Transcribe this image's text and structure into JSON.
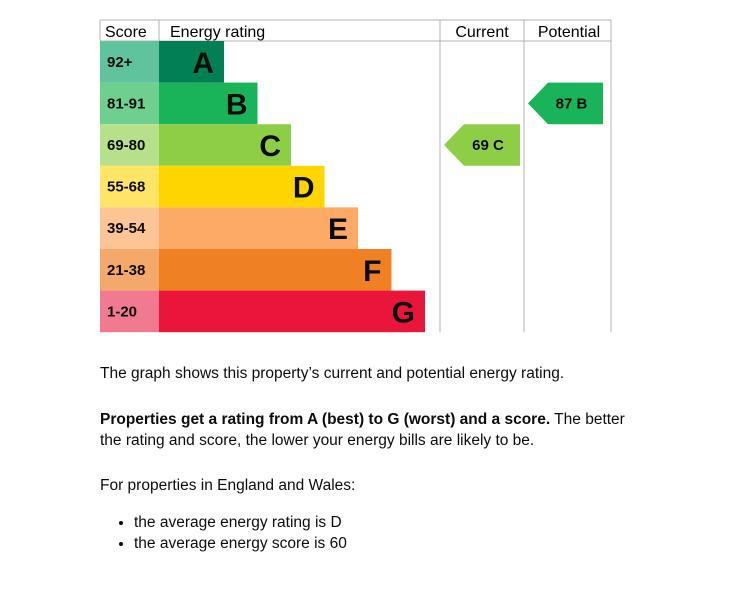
{
  "chart_data": {
    "type": "bar",
    "headers": {
      "score": "Score",
      "rating": "Energy rating",
      "current": "Current",
      "potential": "Potential"
    },
    "bands": [
      {
        "score": "92+",
        "letter": "A",
        "color": "#008054",
        "score_color": "#5fc49d"
      },
      {
        "score": "81-91",
        "letter": "B",
        "color": "#19b459",
        "score_color": "#6fcf8f"
      },
      {
        "score": "69-80",
        "letter": "C",
        "color": "#8dce46",
        "score_color": "#b7e08a"
      },
      {
        "score": "55-68",
        "letter": "D",
        "color": "#ffd500",
        "score_color": "#ffe566"
      },
      {
        "score": "39-54",
        "letter": "E",
        "color": "#fcaa65",
        "score_color": "#fdc595"
      },
      {
        "score": "21-38",
        "letter": "F",
        "color": "#ef8023",
        "score_color": "#f4a869"
      },
      {
        "score": "1-20",
        "letter": "G",
        "color": "#e9153b",
        "score_color": "#f17a90"
      }
    ],
    "current": {
      "value": 69,
      "letter": "C",
      "label": "69 C",
      "color": "#8dce46"
    },
    "potential": {
      "value": 87,
      "letter": "B",
      "label": "87 B",
      "color": "#19b459"
    }
  },
  "text": {
    "p1": "The graph shows this property’s current and potential energy rating.",
    "p2_bold": "Properties get a rating from A (best) to G (worst) and a score.",
    "p2_rest": " The better the rating and score, the lower your energy bills are likely to be.",
    "p3": "For properties in England and Wales:",
    "list": [
      "the average energy rating is D",
      "the average energy score is 60"
    ]
  }
}
